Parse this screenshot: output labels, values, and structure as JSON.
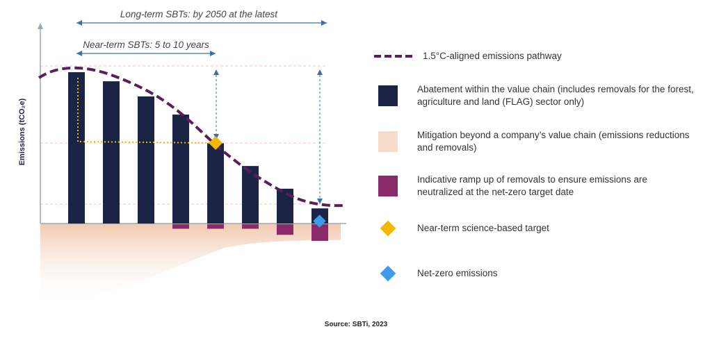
{
  "diagram": {
    "y_axis_label": "Emissions (tCO₂e)",
    "long_term_label": "Long-term SBTs: by 2050 at the latest",
    "near_term_label": "Near-term SBTs: 5 to 10 years",
    "source": "Source: SBTi, 2023"
  },
  "chart_data": {
    "type": "bar",
    "ylabel": "Emissions (tCO₂e)",
    "series": [
      {
        "name": "Abatement within the value chain",
        "values": [
          100,
          94,
          84,
          72,
          53,
          38,
          23,
          10
        ]
      },
      {
        "name": "Indicative ramp up of removals",
        "values": [
          0,
          0,
          0,
          -3,
          -3,
          -3,
          -7,
          -11
        ]
      }
    ],
    "pathway": {
      "name": "1.5°C-aligned emissions pathway"
    },
    "ylim": [
      -15,
      100
    ]
  },
  "legend": {
    "items": [
      {
        "key": "pathway",
        "label": "1.5°C-aligned emissions pathway",
        "color": "#5a1e5c",
        "icon": "dashed-line"
      },
      {
        "key": "abatement",
        "label": "Abatement within the value chain (includes removals for the forest, agriculture and land (FLAG) sector only)",
        "color": "#1c2446",
        "icon": "square"
      },
      {
        "key": "mitigation",
        "label": "Mitigation beyond a company’s value chain (emissions reductions and removals)",
        "color": "#f7dccc",
        "icon": "square"
      },
      {
        "key": "removals",
        "label": "Indicative ramp up of removals to ensure emissions are neutralized at the net-zero target date",
        "color": "#8a2a6a",
        "icon": "square"
      },
      {
        "key": "near-term",
        "label": "Near-term science-based target",
        "color": "#f5b800",
        "icon": "diamond"
      },
      {
        "key": "net-zero",
        "label": "Net-zero emissions",
        "color": "#3d9be9",
        "icon": "diamond"
      }
    ]
  }
}
